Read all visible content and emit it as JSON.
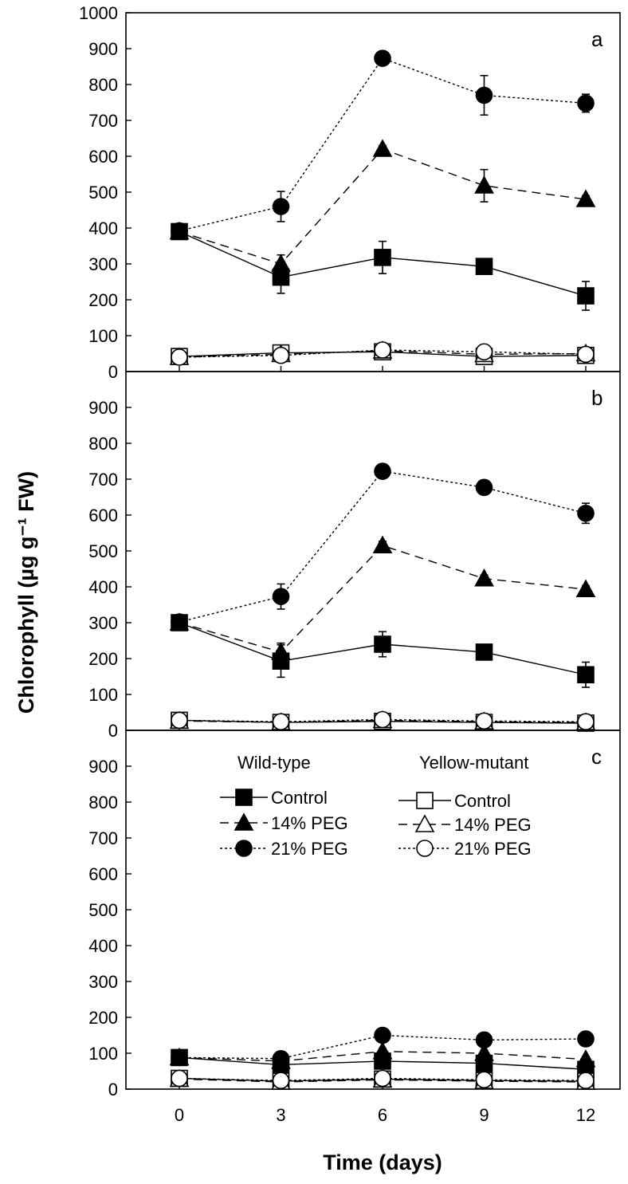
{
  "chart_data": {
    "type": "line",
    "ylabel": "Chlorophyll (µg g⁻¹ FW)",
    "xlabel": "Time (days)",
    "x": [
      0,
      3,
      6,
      9,
      12
    ],
    "x_tick_labels": [
      "0",
      "3",
      "6",
      "9",
      "12"
    ],
    "legend": {
      "placement": "top of panel c",
      "wild_type_title": "Wild-type",
      "mutant_title": "Yellow-mutant",
      "wild_type_items": [
        "Control",
        "14% PEG",
        "21% PEG"
      ],
      "mutant_items": [
        "Control",
        "14% PEG",
        "21% PEG"
      ]
    },
    "panels": [
      {
        "label": "a",
        "ylim": [
          0,
          1000
        ],
        "yticks": [
          0,
          100,
          200,
          300,
          400,
          500,
          600,
          700,
          800,
          900,
          1000
        ],
        "series": [
          {
            "group": "wild",
            "treatment": "control",
            "marker": "square-filled",
            "dash": "solid",
            "values": [
              390,
              263,
              318,
              293,
              211
            ],
            "errors": [
              20,
              45,
              45,
              20,
              40
            ]
          },
          {
            "group": "wild",
            "treatment": "peg14",
            "marker": "triangle-filled",
            "dash": "dashed",
            "values": [
              390,
              300,
              620,
              518,
              480
            ],
            "errors": [
              20,
              25,
              10,
              45,
              10
            ]
          },
          {
            "group": "wild",
            "treatment": "peg21",
            "marker": "circle-filled",
            "dash": "dotted",
            "values": [
              392,
              460,
              873,
              770,
              748
            ],
            "errors": [
              20,
              42,
              5,
              55,
              25
            ]
          },
          {
            "group": "mutant",
            "treatment": "control",
            "marker": "square-open",
            "dash": "solid",
            "values": [
              42,
              52,
              55,
              42,
              45
            ],
            "errors": [
              4,
              4,
              4,
              4,
              4
            ]
          },
          {
            "group": "mutant",
            "treatment": "peg14",
            "marker": "triangle-open",
            "dash": "dashed",
            "values": [
              40,
              48,
              58,
              48,
              50
            ],
            "errors": [
              4,
              4,
              4,
              4,
              4
            ]
          },
          {
            "group": "mutant",
            "treatment": "peg21",
            "marker": "circle-open",
            "dash": "dotted",
            "values": [
              40,
              45,
              60,
              55,
              48
            ],
            "errors": [
              4,
              4,
              4,
              4,
              4
            ]
          }
        ]
      },
      {
        "label": "b",
        "ylim": [
          0,
          1000
        ],
        "yticks": [
          0,
          100,
          200,
          300,
          400,
          500,
          600,
          700,
          800,
          900
        ],
        "series": [
          {
            "group": "wild",
            "treatment": "control",
            "marker": "square-filled",
            "dash": "solid",
            "values": [
              300,
              193,
              240,
              218,
              155
            ],
            "errors": [
              15,
              45,
              35,
              12,
              35
            ]
          },
          {
            "group": "wild",
            "treatment": "peg14",
            "marker": "triangle-filled",
            "dash": "dashed",
            "values": [
              300,
              218,
              515,
              423,
              393
            ],
            "errors": [
              15,
              25,
              12,
              10,
              10
            ]
          },
          {
            "group": "wild",
            "treatment": "peg21",
            "marker": "circle-filled",
            "dash": "dotted",
            "values": [
              302,
              373,
              722,
              677,
              605
            ],
            "errors": [
              15,
              35,
              5,
              10,
              28
            ]
          },
          {
            "group": "mutant",
            "treatment": "control",
            "marker": "square-open",
            "dash": "solid",
            "values": [
              28,
              22,
              25,
              22,
              20
            ],
            "errors": [
              3,
              3,
              3,
              3,
              3
            ]
          },
          {
            "group": "mutant",
            "treatment": "peg14",
            "marker": "triangle-open",
            "dash": "dashed",
            "values": [
              26,
              22,
              28,
              24,
              22
            ],
            "errors": [
              3,
              3,
              3,
              3,
              3
            ]
          },
          {
            "group": "mutant",
            "treatment": "peg21",
            "marker": "circle-open",
            "dash": "dotted",
            "values": [
              28,
              24,
              30,
              26,
              24
            ],
            "errors": [
              3,
              3,
              3,
              3,
              3
            ]
          }
        ]
      },
      {
        "label": "c",
        "ylim": [
          0,
          1000
        ],
        "yticks": [
          0,
          100,
          200,
          300,
          400,
          500,
          600,
          700,
          800,
          900
        ],
        "series": [
          {
            "group": "wild",
            "treatment": "control",
            "marker": "square-filled",
            "dash": "solid",
            "values": [
              88,
              68,
              78,
              72,
              55
            ],
            "errors": [
              8,
              8,
              8,
              8,
              8
            ]
          },
          {
            "group": "wild",
            "treatment": "peg14",
            "marker": "triangle-filled",
            "dash": "dashed",
            "values": [
              88,
              78,
              105,
              100,
              83
            ],
            "errors": [
              8,
              8,
              8,
              8,
              8
            ]
          },
          {
            "group": "wild",
            "treatment": "peg21",
            "marker": "circle-filled",
            "dash": "dotted",
            "values": [
              88,
              85,
              150,
              137,
              140
            ],
            "errors": [
              8,
              8,
              8,
              8,
              8
            ]
          },
          {
            "group": "mutant",
            "treatment": "control",
            "marker": "square-open",
            "dash": "solid",
            "values": [
              30,
              22,
              28,
              24,
              22
            ],
            "errors": [
              3,
              3,
              3,
              3,
              3
            ]
          },
          {
            "group": "mutant",
            "treatment": "peg14",
            "marker": "triangle-open",
            "dash": "dashed",
            "values": [
              28,
              20,
              26,
              22,
              20
            ],
            "errors": [
              3,
              3,
              3,
              3,
              3
            ]
          },
          {
            "group": "mutant",
            "treatment": "peg21",
            "marker": "circle-open",
            "dash": "dotted",
            "values": [
              30,
              24,
              30,
              26,
              24
            ],
            "errors": [
              3,
              3,
              3,
              3,
              3
            ]
          }
        ]
      }
    ]
  }
}
